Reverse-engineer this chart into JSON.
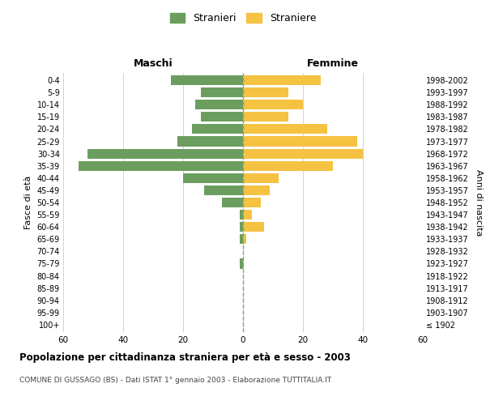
{
  "age_groups": [
    "100+",
    "95-99",
    "90-94",
    "85-89",
    "80-84",
    "75-79",
    "70-74",
    "65-69",
    "60-64",
    "55-59",
    "50-54",
    "45-49",
    "40-44",
    "35-39",
    "30-34",
    "25-29",
    "20-24",
    "15-19",
    "10-14",
    "5-9",
    "0-4"
  ],
  "birth_years": [
    "≤ 1902",
    "1903-1907",
    "1908-1912",
    "1913-1917",
    "1918-1922",
    "1923-1927",
    "1928-1932",
    "1933-1937",
    "1938-1942",
    "1943-1947",
    "1948-1952",
    "1953-1957",
    "1958-1962",
    "1963-1967",
    "1968-1972",
    "1973-1977",
    "1978-1982",
    "1983-1987",
    "1988-1992",
    "1993-1997",
    "1998-2002"
  ],
  "males": [
    0,
    0,
    0,
    0,
    0,
    1,
    0,
    1,
    1,
    1,
    7,
    13,
    20,
    55,
    52,
    22,
    17,
    14,
    16,
    14,
    24
  ],
  "females": [
    0,
    0,
    0,
    0,
    0,
    0,
    0,
    1,
    7,
    3,
    6,
    9,
    12,
    30,
    40,
    38,
    28,
    15,
    20,
    15,
    26
  ],
  "male_color": "#6b9e5e",
  "female_color": "#f5c242",
  "background_color": "#ffffff",
  "grid_color": "#cccccc",
  "title": "Popolazione per cittadinanza straniera per età e sesso - 2003",
  "subtitle": "COMUNE DI GUSSAGO (BS) - Dati ISTAT 1° gennaio 2003 - Elaborazione TUTTITALIA.IT",
  "ylabel_left": "Fasce di età",
  "ylabel_right": "Anni di nascita",
  "header_left": "Maschi",
  "header_right": "Femmine",
  "legend_male": "Stranieri",
  "legend_female": "Straniere",
  "xlim": 60,
  "dashed_line_color": "#9B9B6A"
}
